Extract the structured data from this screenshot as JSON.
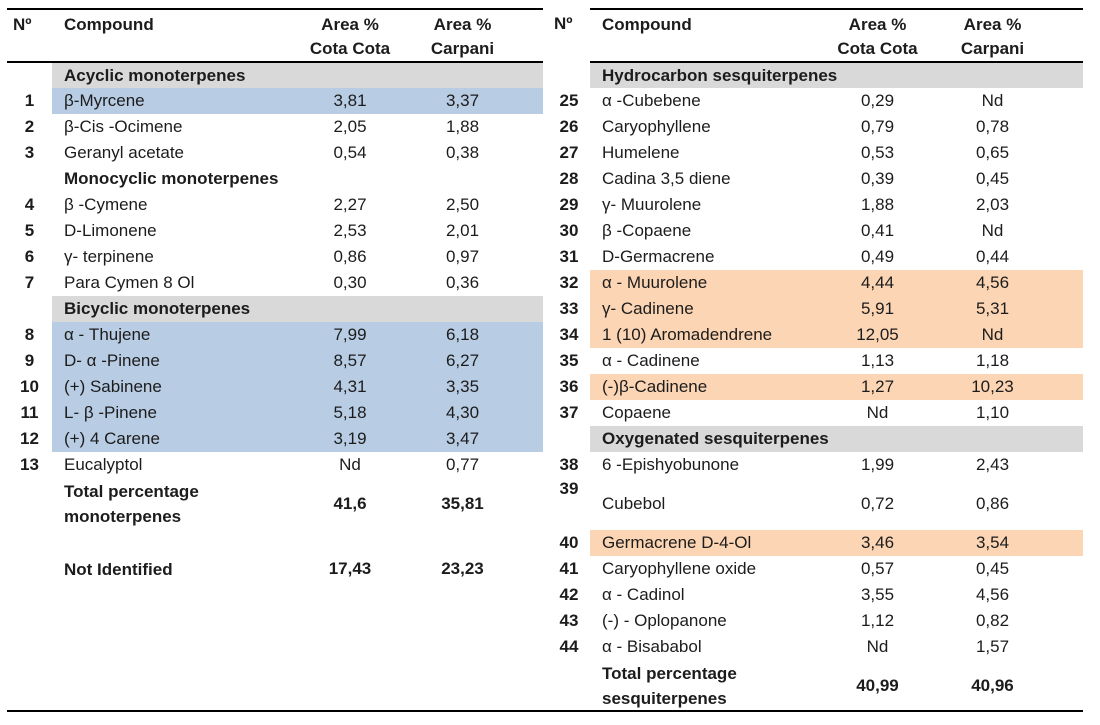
{
  "headers": {
    "no": "Nº",
    "compound": "Compound",
    "area": "Area %",
    "cota_cota": "Cota Cota",
    "carpani": "Carpani"
  },
  "colors": {
    "highlight_blue": "#b8cce4",
    "highlight_orange": "#fcd5b4",
    "section_gray": "#d9d9d9",
    "border_black": "#000000"
  },
  "left_table": {
    "rows": [
      {
        "type": "section",
        "label": "Acyclic monoterpenes",
        "shaded": true
      },
      {
        "type": "data",
        "no": "1",
        "name": "β-Myrcene",
        "v1": "3,81",
        "v2": "3,37",
        "hl": "blue"
      },
      {
        "type": "data",
        "no": "2",
        "name": "β-Cis -Ocimene",
        "v1": "2,05",
        "v2": "1,88"
      },
      {
        "type": "data",
        "no": "3",
        "name": "Geranyl acetate",
        "v1": "0,54",
        "v2": "0,38"
      },
      {
        "type": "section",
        "label": "Monocyclic monoterpenes",
        "shaded": false
      },
      {
        "type": "data",
        "no": "4",
        "name": "β -Cymene",
        "v1": "2,27",
        "v2": "2,50"
      },
      {
        "type": "data",
        "no": "5",
        "name": "D-Limonene",
        "v1": "2,53",
        "v2": "2,01"
      },
      {
        "type": "data",
        "no": "6",
        "name": "γ- terpinene",
        "v1": "0,86",
        "v2": "0,97"
      },
      {
        "type": "data",
        "no": "7",
        "name": "Para Cymen 8 Ol",
        "v1": "0,30",
        "v2": "0,36"
      },
      {
        "type": "section",
        "label": "Bicyclic monoterpenes",
        "shaded": true
      },
      {
        "type": "data",
        "no": "8",
        "name": "α - Thujene",
        "v1": "7,99",
        "v2": "6,18",
        "hl": "blue"
      },
      {
        "type": "data",
        "no": "9",
        "name": "D- α -Pinene",
        "v1": "8,57",
        "v2": "6,27",
        "hl": "blue"
      },
      {
        "type": "data",
        "no": "10",
        "name": "(+) Sabinene",
        "v1": "4,31",
        "v2": "3,35",
        "hl": "blue"
      },
      {
        "type": "data",
        "no": "11",
        "name": "L- β -Pinene",
        "v1": "5,18",
        "v2": "4,30",
        "hl": "blue"
      },
      {
        "type": "data",
        "no": "12",
        "name": "(+) 4 Carene",
        "v1": "3,19",
        "v2": "3,47",
        "hl": "blue"
      },
      {
        "type": "data",
        "no": "13",
        "name": "Eucalyptol",
        "v1": "Nd",
        "v2": "0,77"
      },
      {
        "type": "total",
        "label": "Total percentage monoterpenes",
        "v1": "41,6",
        "v2": "35,81",
        "tall": true
      },
      {
        "type": "spacer"
      },
      {
        "type": "total",
        "label": "Not Identified",
        "v1": "17,43",
        "v2": "23,23"
      }
    ]
  },
  "right_table": {
    "rows": [
      {
        "type": "section",
        "label": "Hydrocarbon sesquiterpenes",
        "shaded": true
      },
      {
        "type": "data",
        "no": "25",
        "name": "α -Cubebene",
        "v1": "0,29",
        "v2": "Nd"
      },
      {
        "type": "data",
        "no": "26",
        "name": "Caryophyllene",
        "v1": "0,79",
        "v2": "0,78"
      },
      {
        "type": "data",
        "no": "27",
        "name": "Humelene",
        "v1": "0,53",
        "v2": "0,65"
      },
      {
        "type": "data",
        "no": "28",
        "name": "Cadina 3,5 diene",
        "v1": "0,39",
        "v2": "0,45"
      },
      {
        "type": "data",
        "no": "29",
        "name": "γ- Muurolene",
        "v1": "1,88",
        "v2": "2,03"
      },
      {
        "type": "data",
        "no": "30",
        "name": "β -Copaene",
        "v1": "0,41",
        "v2": "Nd"
      },
      {
        "type": "data",
        "no": "31",
        "name": "D-Germacrene",
        "v1": "0,49",
        "v2": "0,44"
      },
      {
        "type": "data",
        "no": "32",
        "name": "α - Muurolene",
        "v1": "4,44",
        "v2": "4,56",
        "hl": "orange"
      },
      {
        "type": "data",
        "no": "33",
        "name": "γ- Cadinene",
        "v1": "5,91",
        "v2": "5,31",
        "hl": "orange"
      },
      {
        "type": "data",
        "no": "34",
        "name": "1 (10) Aromadendrene",
        "v1": "12,05",
        "v2": "Nd",
        "hl": "orange"
      },
      {
        "type": "data",
        "no": "35",
        "name": "α - Cadinene",
        "v1": "1,13",
        "v2": "1,18"
      },
      {
        "type": "data",
        "no": "36",
        "name": "(-)β-Cadinene",
        "v1": "1,27",
        "v2": "10,23",
        "hl": "orange"
      },
      {
        "type": "data",
        "no": "37",
        "name": "Copaene",
        "v1": "Nd",
        "v2": "1,10"
      },
      {
        "type": "section",
        "label": "Oxygenated sesquiterpenes",
        "shaded": true
      },
      {
        "type": "data",
        "no": "38",
        "name": "6 -Epishyobunone",
        "v1": "1,99",
        "v2": "2,43"
      },
      {
        "type": "data",
        "no": "39",
        "name": "Cubebol",
        "v1": "0,72",
        "v2": "0,86",
        "tall": true
      },
      {
        "type": "data",
        "no": "40",
        "name": "Germacrene D-4-Ol",
        "v1": "3,46",
        "v2": "3,54",
        "hl": "orange"
      },
      {
        "type": "data",
        "no": "41",
        "name": "Caryophyllene oxide",
        "v1": "0,57",
        "v2": "0,45"
      },
      {
        "type": "data",
        "no": "42",
        "name": "α - Cadinol",
        "v1": "3,55",
        "v2": "4,56"
      },
      {
        "type": "data",
        "no": "43",
        "name": "(-) - Oplopanone",
        "v1": "1,12",
        "v2": "0,82"
      },
      {
        "type": "data",
        "no": "44",
        "name": "α - Bisababol",
        "v1": "Nd",
        "v2": "1,57"
      },
      {
        "type": "total",
        "label": "Total percentage sesquiterpenes",
        "v1": "40,99",
        "v2": "40,96",
        "tall": true
      }
    ]
  }
}
